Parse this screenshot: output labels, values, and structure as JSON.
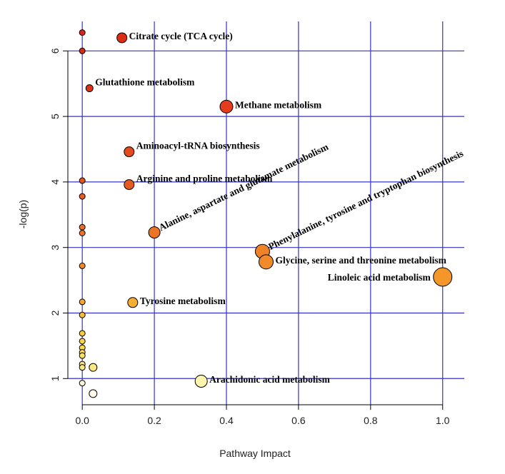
{
  "chart_data": {
    "type": "scatter",
    "xlabel": "Pathway Impact",
    "ylabel": "-log(p)",
    "xlim": [
      -0.04,
      1.06
    ],
    "ylim": [
      0.6,
      6.45
    ],
    "x_ticks": [
      0.0,
      0.2,
      0.4,
      0.6,
      0.8,
      1.0
    ],
    "x_tick_labels": [
      "0.0",
      "0.2",
      "0.4",
      "0.6",
      "0.8",
      "1.0"
    ],
    "y_ticks": [
      1,
      2,
      3,
      4,
      5,
      6
    ],
    "y_tick_labels": [
      "1",
      "2",
      "3",
      "4",
      "5",
      "6"
    ],
    "grid": true,
    "grid_color": "#3333cc",
    "points": [
      {
        "x": 0.11,
        "y": 6.2,
        "size": 14,
        "color": "#dc2d14",
        "label": "Citrate cycle (TCA cycle)",
        "label_pos": "right"
      },
      {
        "x": 0.0,
        "y": 6.28,
        "size": 8,
        "color": "#d7281e",
        "label": ""
      },
      {
        "x": 0.0,
        "y": 6.0,
        "size": 8,
        "color": "#d92b1a",
        "label": ""
      },
      {
        "x": 0.02,
        "y": 5.43,
        "size": 10,
        "color": "#dc3218",
        "label": "Glutathione metabolism",
        "label_pos": "right-up"
      },
      {
        "x": 0.4,
        "y": 5.15,
        "size": 18,
        "color": "#e43c1c",
        "label": "Methane metabolism",
        "label_pos": "right"
      },
      {
        "x": 0.13,
        "y": 4.46,
        "size": 14,
        "color": "#e24a1c",
        "label": "Aminoacyl-tRNA biosynthesis",
        "label_pos": "right-up"
      },
      {
        "x": 0.0,
        "y": 4.02,
        "size": 8,
        "color": "#e5531e",
        "label": ""
      },
      {
        "x": 0.13,
        "y": 3.96,
        "size": 14,
        "color": "#e65a20",
        "label": "Arginine and proline metabolism",
        "label_pos": "right-up"
      },
      {
        "x": 0.0,
        "y": 3.78,
        "size": 8,
        "color": "#e65e20",
        "label": ""
      },
      {
        "x": 0.0,
        "y": 3.31,
        "size": 8,
        "color": "#ea6e22",
        "label": ""
      },
      {
        "x": 0.0,
        "y": 3.22,
        "size": 8,
        "color": "#eb7224",
        "label": ""
      },
      {
        "x": 0.2,
        "y": 3.23,
        "size": 16,
        "color": "#ec7424",
        "label": "Alanine, aspartate and glutamate metabolism",
        "label_pos": "rot"
      },
      {
        "x": 0.5,
        "y": 2.94,
        "size": 20,
        "color": "#f08226",
        "label": "Phenylalanine, tyrosine and tryptophan biosynthesis",
        "label_pos": "rot"
      },
      {
        "x": 0.51,
        "y": 2.78,
        "size": 20,
        "color": "#f18a28",
        "label": "Glycine, serine and threonine metabolism",
        "label_pos": "right"
      },
      {
        "x": 1.0,
        "y": 2.55,
        "size": 26,
        "color": "#f4962a",
        "label": "Linoleic acid metabolism",
        "label_pos": "left"
      },
      {
        "x": 0.0,
        "y": 2.72,
        "size": 8,
        "color": "#f08826",
        "label": ""
      },
      {
        "x": 0.0,
        "y": 2.17,
        "size": 8,
        "color": "#f5a82e",
        "label": ""
      },
      {
        "x": 0.14,
        "y": 2.16,
        "size": 14,
        "color": "#f6ae30",
        "label": "Tyrosine metabolism",
        "label_pos": "right"
      },
      {
        "x": 0.0,
        "y": 1.97,
        "size": 8,
        "color": "#f7bc36",
        "label": ""
      },
      {
        "x": 0.0,
        "y": 1.69,
        "size": 8,
        "color": "#f8cc3e",
        "label": ""
      },
      {
        "x": 0.0,
        "y": 1.57,
        "size": 8,
        "color": "#f9d448",
        "label": ""
      },
      {
        "x": 0.0,
        "y": 1.47,
        "size": 8,
        "color": "#fad850",
        "label": ""
      },
      {
        "x": 0.0,
        "y": 1.4,
        "size": 8,
        "color": "#fadc58",
        "label": ""
      },
      {
        "x": 0.0,
        "y": 1.35,
        "size": 8,
        "color": "#fbe062",
        "label": ""
      },
      {
        "x": 0.0,
        "y": 1.22,
        "size": 8,
        "color": "#fce678",
        "label": ""
      },
      {
        "x": 0.0,
        "y": 1.17,
        "size": 8,
        "color": "#fce87e",
        "label": ""
      },
      {
        "x": 0.03,
        "y": 1.17,
        "size": 11,
        "color": "#fce882",
        "label": ""
      },
      {
        "x": 0.33,
        "y": 0.96,
        "size": 17,
        "color": "#fdf4ae",
        "label": "Arachidonic acid metabolism",
        "label_pos": "right"
      },
      {
        "x": 0.0,
        "y": 0.93,
        "size": 8,
        "color": "#fff8d8",
        "label": ""
      },
      {
        "x": 0.03,
        "y": 0.77,
        "size": 11,
        "color": "#fffbe8",
        "label": ""
      }
    ]
  }
}
